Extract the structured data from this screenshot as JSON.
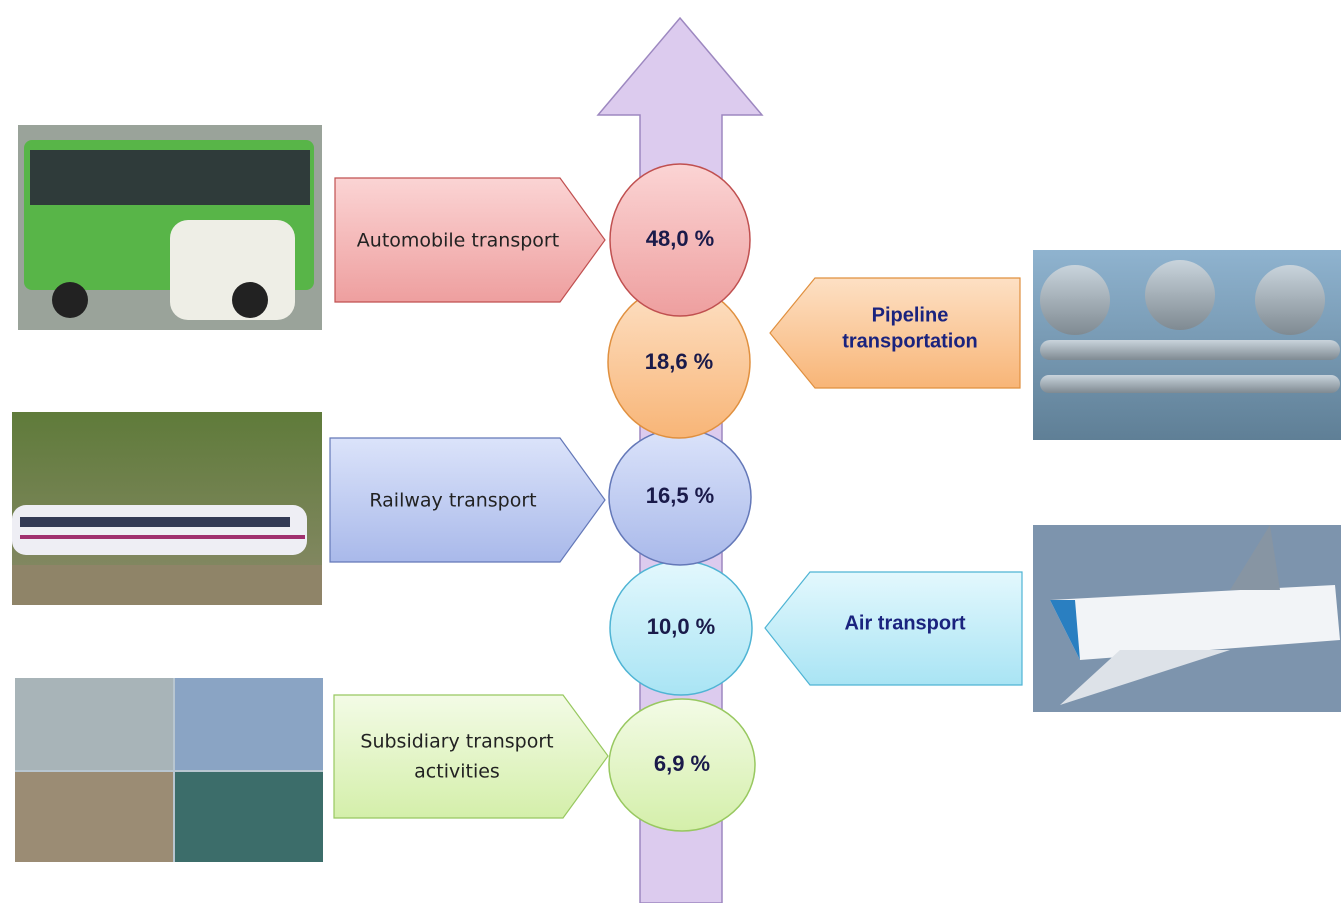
{
  "items": [
    {
      "label_lines": [
        "Automobile transport"
      ],
      "share": "48,0 %"
    },
    {
      "label_lines": [
        "Pipeline",
        "transportation"
      ],
      "share": "18,6 %"
    },
    {
      "label_lines": [
        "Railway transport"
      ],
      "share": "16,5 %"
    },
    {
      "label_lines": [
        "Air transport"
      ],
      "share": "10,0 %"
    },
    {
      "label_lines": [
        "Subsidiary transport",
        "activities"
      ],
      "share": "6,9 %"
    }
  ]
}
